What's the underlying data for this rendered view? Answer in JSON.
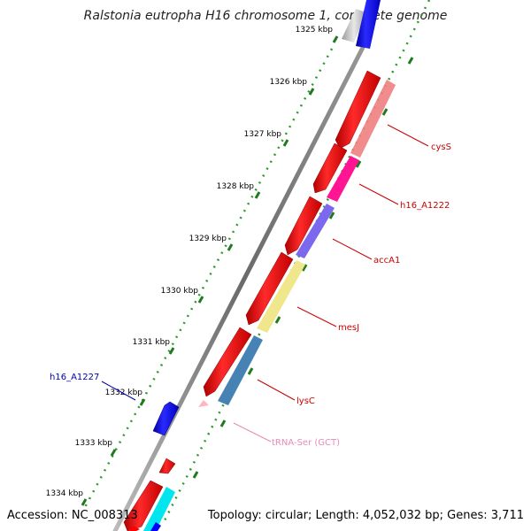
{
  "title": "Ralstonia eutropha H16 chromosome 1, complete genome",
  "footer": {
    "accession": "Accession: NC_008313",
    "topology": "Topology: circular; Length: 4,052,032 bp; Genes: 3,711"
  },
  "colors": {
    "cds_forward": "#ff0000",
    "cds_reverse": "#0000ff",
    "tick_major": "#2a8a2a",
    "tick_minor": "#2a9a2a",
    "backbone": "#808080",
    "label_red": "#cc0000",
    "label_blue": "#0000aa",
    "label_trna": "#e58cb4"
  },
  "ruler": [
    {
      "label": "1325 kbp"
    },
    {
      "label": "1326 kbp"
    },
    {
      "label": "1327 kbp"
    },
    {
      "label": "1328 kbp"
    },
    {
      "label": "1329 kbp"
    },
    {
      "label": "1330 kbp"
    },
    {
      "label": "1331 kbp"
    },
    {
      "label": "1332 kbp"
    },
    {
      "label": "1333 kbp"
    },
    {
      "label": "1334 kbp"
    }
  ],
  "features": {
    "cysS": {
      "label": "cysS",
      "color": "#f08080"
    },
    "h16_A1222": {
      "label": "h16_A1222",
      "color": "#ff1493"
    },
    "accA1": {
      "label": "accA1",
      "color": "#7b68ee"
    },
    "mesJ": {
      "label": "mesJ",
      "color": "#f0e68c"
    },
    "lysC": {
      "label": "lysC",
      "color": "#4682b4"
    },
    "tRNA": {
      "label": "tRNA-Ser (GCT)",
      "color": "#ffb6c1"
    },
    "h16_A1227": {
      "label": "h16_A1227",
      "color": "#0000ff"
    }
  }
}
